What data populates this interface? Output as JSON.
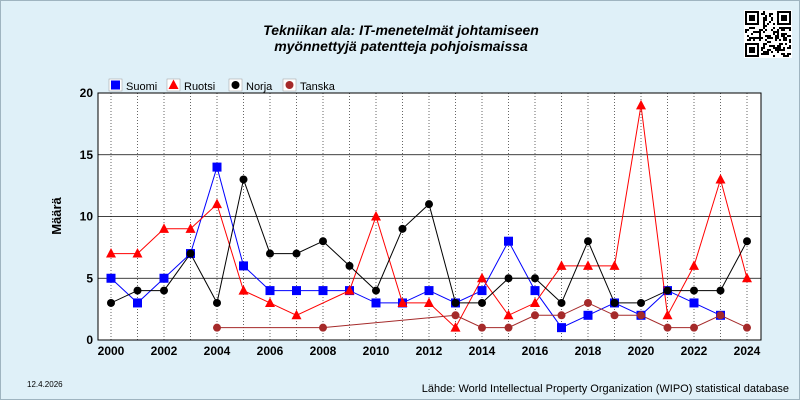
{
  "chart_data": {
    "type": "line",
    "title": [
      "Tekniikan ala: IT-menetelmät johtamiseen",
      "myönnettyjä patentteja pohjoismaissa"
    ],
    "ylabel": "Määrä",
    "xlabel": "",
    "xlim": [
      2000,
      2024
    ],
    "ylim": [
      0,
      20
    ],
    "x_ticks": [
      2000,
      2002,
      2004,
      2006,
      2008,
      2010,
      2012,
      2014,
      2016,
      2018,
      2020,
      2022,
      2024
    ],
    "y_ticks": [
      0,
      5,
      10,
      15,
      20
    ],
    "grid": true,
    "legend_position": "top-left",
    "series": [
      {
        "name": "Suomi",
        "color": "#0000ff",
        "marker": "square",
        "points": [
          [
            2000,
            5
          ],
          [
            2001,
            3
          ],
          [
            2002,
            5
          ],
          [
            2003,
            7
          ],
          [
            2004,
            14
          ],
          [
            2005,
            6
          ],
          [
            2006,
            4
          ],
          [
            2007,
            4
          ],
          [
            2008,
            4
          ],
          [
            2009,
            4
          ],
          [
            2010,
            3
          ],
          [
            2011,
            3
          ],
          [
            2012,
            4
          ],
          [
            2013,
            3
          ],
          [
            2014,
            4
          ],
          [
            2015,
            8
          ],
          [
            2016,
            4
          ],
          [
            2017,
            1
          ],
          [
            2018,
            2
          ],
          [
            2019,
            3
          ],
          [
            2020,
            2
          ],
          [
            2021,
            4
          ],
          [
            2022,
            3
          ],
          [
            2023,
            2
          ]
        ]
      },
      {
        "name": "Ruotsi",
        "color": "#ff0000",
        "marker": "triangle",
        "points": [
          [
            2000,
            7
          ],
          [
            2001,
            7
          ],
          [
            2002,
            9
          ],
          [
            2003,
            9
          ],
          [
            2004,
            11
          ],
          [
            2005,
            4
          ],
          [
            2006,
            3
          ],
          [
            2007,
            2
          ],
          [
            2009,
            4
          ],
          [
            2010,
            10
          ],
          [
            2011,
            3
          ],
          [
            2012,
            3
          ],
          [
            2013,
            1
          ],
          [
            2014,
            5
          ],
          [
            2015,
            2
          ],
          [
            2016,
            3
          ],
          [
            2017,
            6
          ],
          [
            2018,
            6
          ],
          [
            2019,
            6
          ],
          [
            2020,
            19
          ],
          [
            2021,
            2
          ],
          [
            2022,
            6
          ],
          [
            2023,
            13
          ],
          [
            2024,
            5
          ]
        ]
      },
      {
        "name": "Norja",
        "color": "#000000",
        "marker": "circle",
        "points": [
          [
            2000,
            3
          ],
          [
            2001,
            4
          ],
          [
            2002,
            4
          ],
          [
            2003,
            7
          ],
          [
            2004,
            3
          ],
          [
            2005,
            13
          ],
          [
            2006,
            7
          ],
          [
            2007,
            7
          ],
          [
            2008,
            8
          ],
          [
            2009,
            6
          ],
          [
            2010,
            4
          ],
          [
            2011,
            9
          ],
          [
            2012,
            11
          ],
          [
            2013,
            3
          ],
          [
            2014,
            3
          ],
          [
            2015,
            5
          ],
          [
            2016,
            5
          ],
          [
            2017,
            3
          ],
          [
            2018,
            8
          ],
          [
            2019,
            3
          ],
          [
            2020,
            3
          ],
          [
            2021,
            4
          ],
          [
            2022,
            4
          ],
          [
            2023,
            4
          ],
          [
            2024,
            8
          ]
        ]
      },
      {
        "name": "Tanska",
        "color": "#a52a2a",
        "marker": "circle",
        "points": [
          [
            2004,
            1
          ],
          [
            2008,
            1
          ],
          [
            2013,
            2
          ],
          [
            2014,
            1
          ],
          [
            2015,
            1
          ],
          [
            2016,
            2
          ],
          [
            2017,
            2
          ],
          [
            2018,
            3
          ],
          [
            2019,
            2
          ],
          [
            2020,
            2
          ],
          [
            2021,
            1
          ],
          [
            2022,
            1
          ],
          [
            2023,
            2
          ],
          [
            2024,
            1
          ]
        ]
      }
    ]
  },
  "footer": {
    "date": "12.4.2026",
    "source": "Lähde: World Intellectual Property Organization (WIPO) statistical database"
  },
  "qr_icon": "qr-code-icon"
}
